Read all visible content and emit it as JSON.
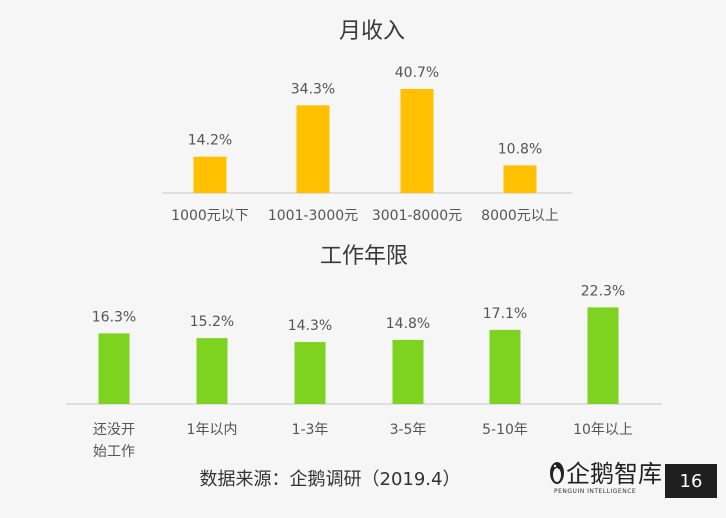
{
  "chart_data": [
    {
      "type": "bar",
      "title": "月收入",
      "categories": [
        "1000元以下",
        "1001-3000元",
        "3001-8000元",
        "8000元以上"
      ],
      "values": [
        14.2,
        34.3,
        40.7,
        10.8
      ],
      "value_labels": [
        "14.2%",
        "34.3%",
        "40.7%",
        "10.8%"
      ],
      "unit": "%",
      "color": "#FFC000",
      "ylim": [
        0,
        45
      ],
      "grid": false
    },
    {
      "type": "bar",
      "title": "工作年限",
      "categories": [
        "还没开\n始工作",
        "1年以内",
        "1-3年",
        "3-5年",
        "5-10年",
        "10年以上"
      ],
      "values": [
        16.3,
        15.2,
        14.3,
        14.8,
        17.1,
        22.3
      ],
      "value_labels": [
        "16.3%",
        "15.2%",
        "14.3%",
        "14.8%",
        "17.1%",
        "22.3%"
      ],
      "unit": "%",
      "color": "#7ED321",
      "ylim": [
        0,
        24
      ],
      "grid": false
    }
  ],
  "footer": {
    "source": "数据来源：企鹅调研（2019.4）"
  },
  "logo": {
    "name": "企鹅智库",
    "subtitle": "PENGUIN INTELLIGENCE"
  },
  "page": {
    "number": "16"
  }
}
